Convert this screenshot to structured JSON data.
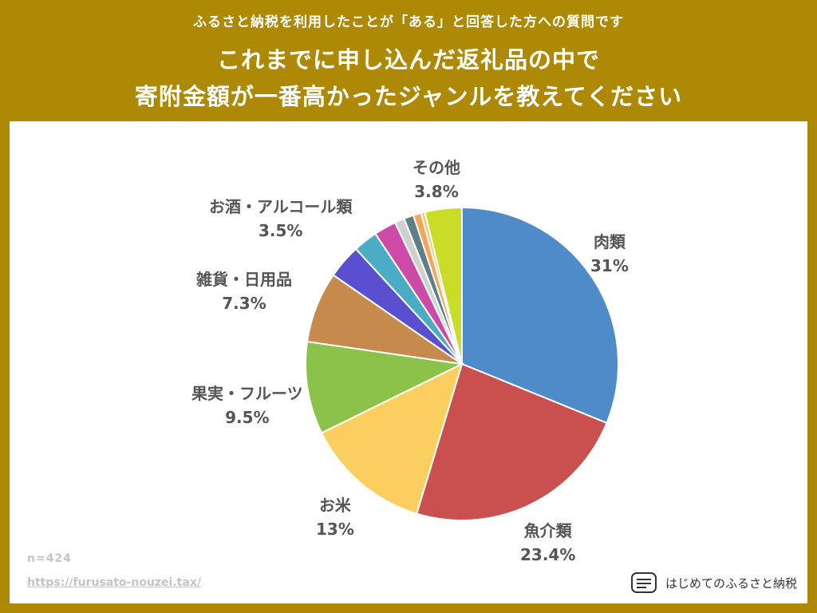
{
  "header": {
    "subtitle": "ふるさと納税を利用したことが「ある」と回答した方への質問です",
    "title_line1": "これまでに申し込んだ返礼品の中で",
    "title_line2": "寄附金額が一番高かったジャンルを教えてください"
  },
  "footer": {
    "sample_size": "n=424",
    "url": "https://furusato-nouzei.tax/",
    "brand": "はじめてのふるさと納税"
  },
  "colors": {
    "background": "#ae8905",
    "panel": "#ffffff",
    "label_text": "#555555"
  },
  "chart_data": {
    "type": "pie",
    "title": "",
    "start_angle_deg": 0,
    "direction": "clockwise",
    "slices": [
      {
        "name": "肉類",
        "value": 31,
        "label": "31%",
        "color": "#4f8bc9"
      },
      {
        "name": "魚介類",
        "value": 23.4,
        "label": "23.4%",
        "color": "#c9504f"
      },
      {
        "name": "お米",
        "value": 13,
        "label": "13%",
        "color": "#fbcf5f"
      },
      {
        "name": "果実・フルーツ",
        "value": 9.5,
        "label": "9.5%",
        "color": "#8bc34a"
      },
      {
        "name": "雑貨・日用品",
        "value": 7.3,
        "label": "7.3%",
        "color": "#c68a4c"
      },
      {
        "name": "",
        "value": 3.5,
        "label": "",
        "color": "#5a4fcf"
      },
      {
        "name": "",
        "value": 2.5,
        "label": "",
        "color": "#4bacc6"
      },
      {
        "name": "",
        "value": 2.3,
        "label": "",
        "color": "#cc4ba8"
      },
      {
        "name": "",
        "value": 1.0,
        "label": "",
        "color": "#cfcfcf"
      },
      {
        "name": "",
        "value": 1.0,
        "label": "",
        "color": "#5f7f86"
      },
      {
        "name": "",
        "value": 0.8,
        "label": "",
        "color": "#f2a65a"
      },
      {
        "name": "",
        "value": 0.4,
        "label": "",
        "color": "#f6c77a"
      },
      {
        "name": "その他",
        "value": 3.8,
        "label": "3.8%",
        "color": "#c8dc28"
      }
    ],
    "callouts": [
      {
        "text": "肉類",
        "value": "31%"
      },
      {
        "text": "魚介類",
        "value": "23.4%"
      },
      {
        "text": "お米",
        "value": "13%"
      },
      {
        "text": "果実・フルーツ",
        "value": "9.5%"
      },
      {
        "text": "雑貨・日用品",
        "value": "7.3%"
      },
      {
        "text": "お酒・アルコール類",
        "value": "3.5%"
      },
      {
        "text": "その他",
        "value": "3.8%"
      }
    ]
  }
}
